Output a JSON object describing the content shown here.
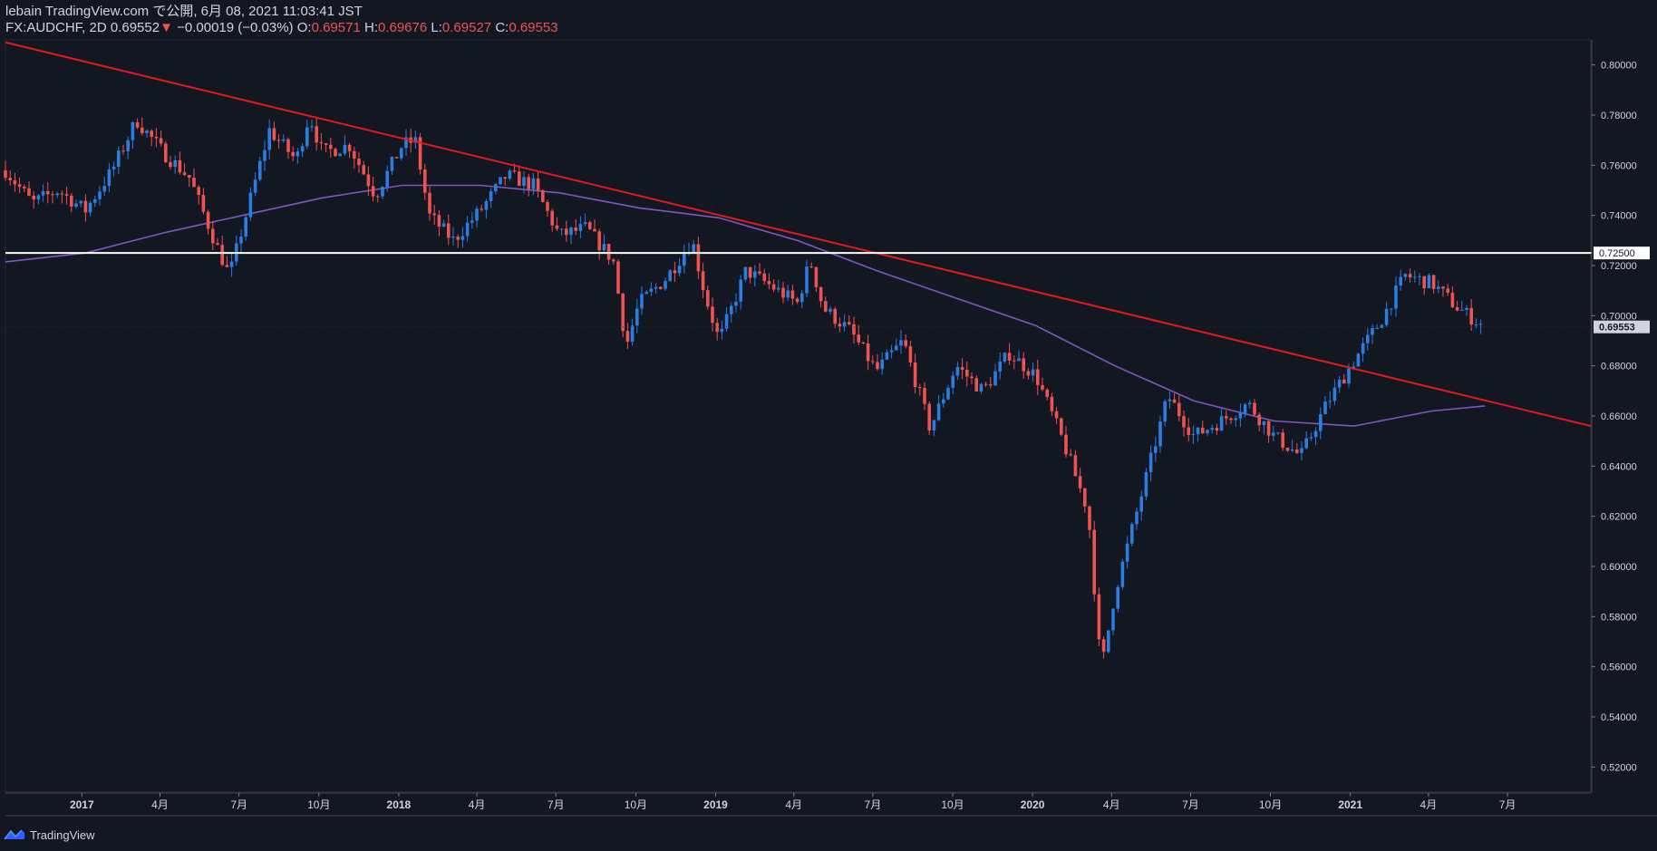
{
  "header": {
    "publish_line": "lebain TradingView.com で公開, 6月 08, 2021 11:03:41 JST",
    "symbol": "FX:AUDCHF, 2D",
    "last_price": "0.69552",
    "change_arrow": "▼",
    "change": "−0.00019 (−0.03%)",
    "o_label": "O:",
    "o_value": "0.69571",
    "h_label": "H:",
    "h_value": "0.69676",
    "l_label": "L:",
    "l_value": "0.69527",
    "c_label": "C:",
    "c_value": "0.69553"
  },
  "footer": {
    "brand": "TradingView"
  },
  "colors": {
    "background": "#131722",
    "up_candle": "#2a7de1",
    "down_candle": "#ef5350",
    "moving_average": "#7e57c2",
    "trendline": "#e21a1a",
    "horizontal_line": "#ffffff",
    "axis_text": "#d1d4dc"
  },
  "chart_data": {
    "type": "candlestick",
    "symbol": "FX:AUDCHF",
    "timeframe": "2D",
    "ylim": [
      0.51,
      0.81
    ],
    "y_ticks": [
      "0.52000",
      "0.54000",
      "0.56000",
      "0.58000",
      "0.60000",
      "0.62000",
      "0.64000",
      "0.66000",
      "0.68000",
      "0.70000",
      "0.72000",
      "0.74000",
      "0.76000",
      "0.78000",
      "0.80000"
    ],
    "x_ticks": [
      {
        "label": "2017",
        "x": "2017-01"
      },
      {
        "label": "4月",
        "x": "2017-04"
      },
      {
        "label": "7月",
        "x": "2017-07"
      },
      {
        "label": "10月",
        "x": "2017-10"
      },
      {
        "label": "2018",
        "x": "2018-01"
      },
      {
        "label": "4月",
        "x": "2018-04"
      },
      {
        "label": "7月",
        "x": "2018-07"
      },
      {
        "label": "10月",
        "x": "2018-10"
      },
      {
        "label": "2019",
        "x": "2019-01"
      },
      {
        "label": "4月",
        "x": "2019-04"
      },
      {
        "label": "7月",
        "x": "2019-07"
      },
      {
        "label": "10月",
        "x": "2019-10"
      },
      {
        "label": "2020",
        "x": "2020-01"
      },
      {
        "label": "4月",
        "x": "2020-04"
      },
      {
        "label": "7月",
        "x": "2020-07"
      },
      {
        "label": "10月",
        "x": "2020-10"
      },
      {
        "label": "2021",
        "x": "2021-01"
      },
      {
        "label": "4月",
        "x": "2021-04"
      },
      {
        "label": "7月",
        "x": "2021-07"
      }
    ],
    "price_path": [
      [
        "2016-10",
        0.758
      ],
      [
        "2016-11",
        0.745
      ],
      [
        "2016-12",
        0.75
      ],
      [
        "2017-01",
        0.742
      ],
      [
        "2017-02",
        0.758
      ],
      [
        "2017-03",
        0.778
      ],
      [
        "2017-04",
        0.765
      ],
      [
        "2017-05",
        0.755
      ],
      [
        "2017-06",
        0.728
      ],
      [
        "2017-06-20",
        0.716
      ],
      [
        "2017-07",
        0.735
      ],
      [
        "2017-08",
        0.774
      ],
      [
        "2017-09",
        0.762
      ],
      [
        "2017-09-20",
        0.78
      ],
      [
        "2017-10",
        0.765
      ],
      [
        "2017-11",
        0.768
      ],
      [
        "2017-12",
        0.748
      ],
      [
        "2018-01",
        0.768
      ],
      [
        "2018-01-20",
        0.77
      ],
      [
        "2018-02",
        0.74
      ],
      [
        "2018-03",
        0.73
      ],
      [
        "2018-04",
        0.742
      ],
      [
        "2018-05",
        0.756
      ],
      [
        "2018-06",
        0.752
      ],
      [
        "2018-07",
        0.732
      ],
      [
        "2018-08",
        0.735
      ],
      [
        "2018-09",
        0.722
      ],
      [
        "2018-09-20",
        0.688
      ],
      [
        "2018-10",
        0.705
      ],
      [
        "2018-11",
        0.715
      ],
      [
        "2018-12",
        0.73
      ],
      [
        "2018-12-20",
        0.708
      ],
      [
        "2019-01",
        0.69
      ],
      [
        "2019-02",
        0.718
      ],
      [
        "2019-03",
        0.712
      ],
      [
        "2019-04",
        0.705
      ],
      [
        "2019-04-20",
        0.722
      ],
      [
        "2019-05",
        0.703
      ],
      [
        "2019-06",
        0.694
      ],
      [
        "2019-07",
        0.678
      ],
      [
        "2019-08",
        0.69
      ],
      [
        "2019-09",
        0.655
      ],
      [
        "2019-10",
        0.68
      ],
      [
        "2019-11",
        0.67
      ],
      [
        "2019-12",
        0.685
      ],
      [
        "2020-01",
        0.676
      ],
      [
        "2020-02",
        0.65
      ],
      [
        "2020-03",
        0.622
      ],
      [
        "2020-03-20",
        0.558
      ],
      [
        "2020-04",
        0.59
      ],
      [
        "2020-05",
        0.628
      ],
      [
        "2020-06",
        0.668
      ],
      [
        "2020-07",
        0.652
      ],
      [
        "2020-08",
        0.658
      ],
      [
        "2020-09",
        0.665
      ],
      [
        "2020-10",
        0.652
      ],
      [
        "2020-11",
        0.644
      ],
      [
        "2020-12",
        0.665
      ],
      [
        "2021-01",
        0.682
      ],
      [
        "2021-02",
        0.698
      ],
      [
        "2021-03",
        0.716
      ],
      [
        "2021-04",
        0.713
      ],
      [
        "2021-05",
        0.703
      ],
      [
        "2021-06",
        0.6955
      ]
    ],
    "moving_average": [
      [
        "2016-10",
        0.7215
      ],
      [
        "2017-01",
        0.725
      ],
      [
        "2017-04",
        0.733
      ],
      [
        "2017-07",
        0.74
      ],
      [
        "2017-10",
        0.747
      ],
      [
        "2018-01",
        0.752
      ],
      [
        "2018-04",
        0.752
      ],
      [
        "2018-07",
        0.749
      ],
      [
        "2018-10",
        0.743
      ],
      [
        "2019-01",
        0.739
      ],
      [
        "2019-04",
        0.73
      ],
      [
        "2019-07",
        0.718
      ],
      [
        "2019-10",
        0.707
      ],
      [
        "2020-01",
        0.696
      ],
      [
        "2020-04",
        0.68
      ],
      [
        "2020-07",
        0.666
      ],
      [
        "2020-10",
        0.658
      ],
      [
        "2021-01",
        0.656
      ],
      [
        "2021-04",
        0.662
      ],
      [
        "2021-06",
        0.664
      ]
    ],
    "trendline": {
      "from": [
        "2016-10",
        0.809
      ],
      "to": [
        "2021-10",
        0.656
      ]
    },
    "horizontal_level": {
      "value": 0.725,
      "label": "0.72500"
    },
    "last_price_label": "0.69553"
  }
}
